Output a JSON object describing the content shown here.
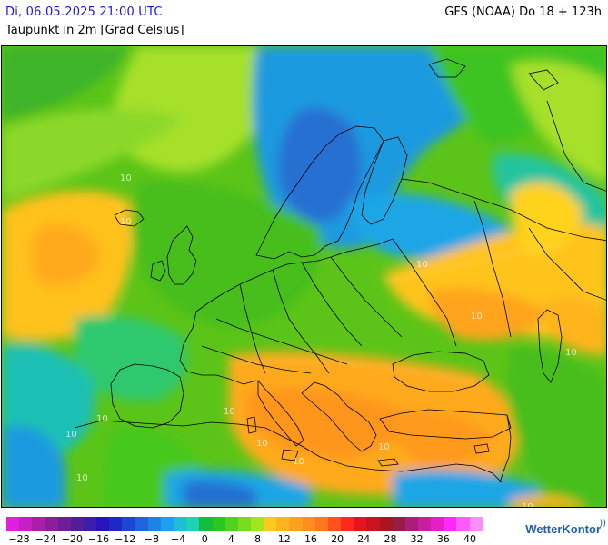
{
  "header": {
    "date_label": "Di, 06.05.2025 21:00 UTC",
    "parameter_label": "Taupunkt in 2m [Grad Celsius]",
    "model_label": "GFS (NOAA) Do 18 + 123h"
  },
  "map": {
    "contour_labels": [
      "10",
      "10",
      "10",
      "10",
      "10",
      "10",
      "10",
      "10",
      "10",
      "10",
      "10",
      "10",
      "10",
      "10"
    ]
  },
  "legend": {
    "colors": [
      "#e01ee0",
      "#c81ec8",
      "#aa1eaa",
      "#8c1e9a",
      "#6e1e9a",
      "#501e96",
      "#3c1eaa",
      "#2814be",
      "#1e28c8",
      "#1e46d2",
      "#1e64dc",
      "#1e82e6",
      "#1ea0f0",
      "#1ebed7",
      "#1ed2b4",
      "#14be3c",
      "#28c81e",
      "#50d21e",
      "#78dc1e",
      "#a0e61e",
      "#ffc81e",
      "#ffb41e",
      "#ffa01e",
      "#ff8c1e",
      "#ff781e",
      "#ff501e",
      "#ff281e",
      "#e6141e",
      "#c8141e",
      "#aa141e",
      "#961e46",
      "#aa1e78",
      "#c81ea0",
      "#e61ec8",
      "#ff28ff",
      "#ff5aff",
      "#ff8cff"
    ],
    "tick_labels": [
      "−28",
      "−24",
      "−20",
      "−16",
      "−12",
      "−8",
      "−4",
      "0",
      "4",
      "8",
      "12",
      "16",
      "20",
      "24",
      "28",
      "32",
      "36",
      "40"
    ]
  },
  "brand": {
    "name": "WetterKontor"
  }
}
